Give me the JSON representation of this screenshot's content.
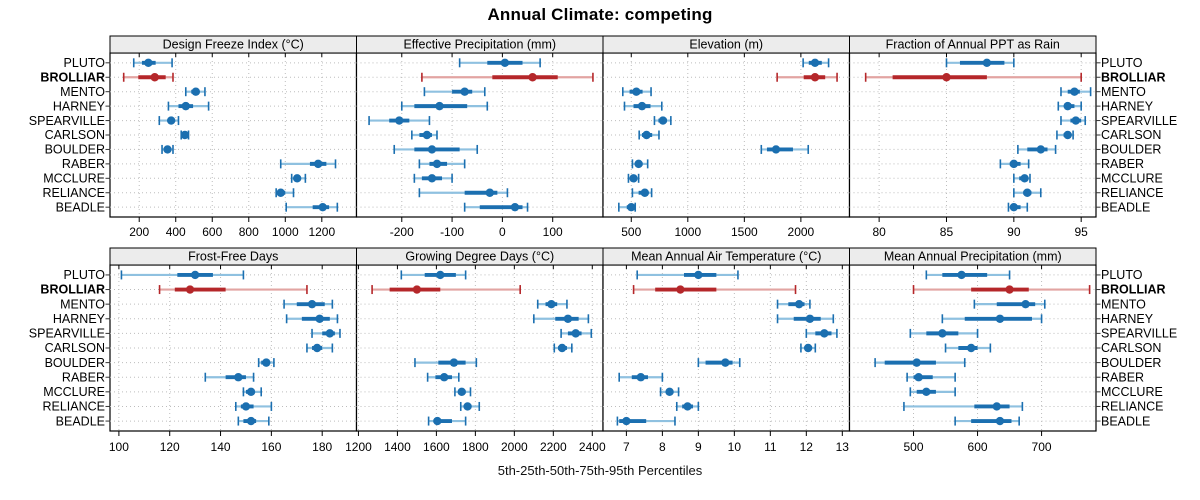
{
  "title": "Annual Climate: competing",
  "caption": "5th-25th-50th-75th-95th Percentiles",
  "colors": {
    "normal": "#1b6fb0",
    "normal_light": "#8fc1e0",
    "highlight": "#b5272a",
    "highlight_light": "#e2a4a2",
    "strip_bg": "#ececec",
    "panel_border": "#000000",
    "grid": "#bdbdbd",
    "text": "#000000"
  },
  "chart_data": {
    "type": "scatter",
    "variant": "trellis percentile dot-range plot (whisker = 5th-95th, thick bar = 25th-75th, dot = median)",
    "title": "Annual Climate: competing",
    "caption": "5th-25th-50th-75th-95th Percentiles",
    "grid": "dotted",
    "legend_position": "none",
    "percentile_levels": [
      5,
      25,
      50,
      75,
      95
    ],
    "stations": [
      "PLUTO",
      "BROLLIAR",
      "MENTO",
      "HARNEY",
      "SPEARVILLE",
      "CARLSON",
      "BOULDER",
      "RABER",
      "MCCLURE",
      "RELIANCE",
      "BEADLE"
    ],
    "highlight_station": "BROLLIAR",
    "panels": [
      {
        "title": "Design Freeze Index (°C)",
        "xlim": [
          40,
          1390
        ],
        "ticks": [
          200,
          400,
          600,
          800,
          1000,
          1200
        ],
        "values": {
          "PLUTO": [
            170,
            215,
            250,
            290,
            380
          ],
          "BROLLIAR": [
            115,
            195,
            285,
            345,
            385
          ],
          "MENTO": [
            455,
            485,
            510,
            530,
            560
          ],
          "HARNEY": [
            360,
            415,
            455,
            495,
            580
          ],
          "SPEARVILLE": [
            310,
            355,
            375,
            395,
            415
          ],
          "CARLSON": [
            430,
            440,
            450,
            460,
            470
          ],
          "BOULDER": [
            325,
            340,
            355,
            370,
            385
          ],
          "RABER": [
            975,
            1135,
            1180,
            1225,
            1275
          ],
          "MCCLURE": [
            1035,
            1050,
            1065,
            1085,
            1110
          ],
          "RELIANCE": [
            950,
            960,
            975,
            1000,
            1045
          ],
          "BEADLE": [
            1005,
            1150,
            1205,
            1240,
            1285
          ]
        }
      },
      {
        "title": "Effective Precipitation (mm)",
        "xlim": [
          -290,
          200
        ],
        "ticks": [
          -200,
          -100,
          0,
          100
        ],
        "values": {
          "PLUTO": [
            -85,
            -30,
            5,
            40,
            75
          ],
          "BROLLIAR": [
            -160,
            -20,
            60,
            110,
            180
          ],
          "MENTO": [
            -155,
            -100,
            -75,
            -60,
            -35
          ],
          "HARNEY": [
            -200,
            -175,
            -125,
            -70,
            -30
          ],
          "SPEARVILLE": [
            -265,
            -225,
            -205,
            -185,
            -145
          ],
          "CARLSON": [
            -180,
            -165,
            -150,
            -140,
            -130
          ],
          "BOULDER": [
            -215,
            -175,
            -140,
            -85,
            -50
          ],
          "RABER": [
            -165,
            -145,
            -130,
            -110,
            -75
          ],
          "MCCLURE": [
            -175,
            -160,
            -140,
            -120,
            -100
          ],
          "RELIANCE": [
            -165,
            -75,
            -25,
            -10,
            10
          ],
          "BEADLE": [
            -75,
            -45,
            25,
            40,
            50
          ]
        }
      },
      {
        "title": "Elevation (m)",
        "xlim": [
          250,
          2430
        ],
        "ticks": [
          500,
          1000,
          1500,
          2000
        ],
        "values": {
          "PLUTO": [
            2020,
            2070,
            2125,
            2185,
            2245
          ],
          "BROLLIAR": [
            1790,
            2025,
            2125,
            2215,
            2320
          ],
          "MENTO": [
            425,
            485,
            545,
            600,
            675
          ],
          "HARNEY": [
            440,
            520,
            595,
            670,
            770
          ],
          "SPEARVILLE": [
            705,
            740,
            780,
            815,
            850
          ],
          "CARLSON": [
            570,
            595,
            635,
            685,
            745
          ],
          "BOULDER": [
            1650,
            1700,
            1780,
            1930,
            2065
          ],
          "RABER": [
            510,
            535,
            565,
            600,
            645
          ],
          "MCCLURE": [
            475,
            500,
            520,
            540,
            565
          ],
          "RELIANCE": [
            510,
            565,
            620,
            645,
            680
          ],
          "BEADLE": [
            390,
            460,
            500,
            520,
            535
          ]
        }
      },
      {
        "title": "Fraction of Annual PPT as Rain",
        "xlim": [
          77.8,
          96.1
        ],
        "ticks": [
          80,
          85,
          90,
          95
        ],
        "values": {
          "PLUTO": [
            85,
            86,
            88,
            89.3,
            90
          ],
          "BROLLIAR": [
            79,
            81,
            85,
            88,
            95
          ],
          "MENTO": [
            93.5,
            94,
            94.5,
            94.9,
            95.7
          ],
          "HARNEY": [
            93.3,
            93.8,
            94,
            94.5,
            95
          ],
          "SPEARVILLE": [
            93.5,
            94.2,
            94.6,
            95,
            95.3
          ],
          "CARLSON": [
            93.2,
            93.7,
            94,
            94.2,
            94.4
          ],
          "BOULDER": [
            90.3,
            91,
            92,
            92.5,
            93.1
          ],
          "RABER": [
            89,
            89.7,
            90,
            90.5,
            91.1
          ],
          "MCCLURE": [
            90,
            90.4,
            90.8,
            91,
            91.2
          ],
          "RELIANCE": [
            90,
            90.7,
            91,
            91.3,
            92
          ],
          "BEADLE": [
            89.6,
            89.9,
            90,
            90.5,
            91
          ]
        }
      },
      {
        "title": "Frost-Free Days",
        "xlim": [
          96.5,
          193.5
        ],
        "ticks": [
          100,
          120,
          140,
          160,
          180
        ],
        "values": {
          "PLUTO": [
            101,
            123,
            130,
            137,
            149
          ],
          "BROLLIAR": [
            116,
            122,
            128,
            142,
            174
          ],
          "MENTO": [
            165,
            170,
            176,
            181,
            184
          ],
          "HARNEY": [
            166,
            172,
            179,
            183,
            186
          ],
          "SPEARVILLE": [
            176,
            180,
            183,
            185,
            187
          ],
          "CARLSON": [
            174,
            176,
            178,
            180,
            184
          ],
          "BOULDER": [
            155,
            156,
            158,
            159,
            161
          ],
          "RABER": [
            134,
            142,
            147,
            150,
            153
          ],
          "MCCLURE": [
            149,
            150,
            152,
            153,
            156
          ],
          "RELIANCE": [
            146,
            148,
            150,
            153,
            160
          ],
          "BEADLE": [
            147,
            149,
            152,
            154,
            159
          ]
        }
      },
      {
        "title": "Growing Degree Days (°C)",
        "xlim": [
          1190,
          2455
        ],
        "ticks": [
          1200,
          1400,
          1600,
          1800,
          2000,
          2200,
          2400
        ],
        "values": {
          "PLUTO": [
            1420,
            1540,
            1620,
            1700,
            1750
          ],
          "BROLLIAR": [
            1270,
            1360,
            1500,
            1620,
            2030
          ],
          "MENTO": [
            2120,
            2160,
            2190,
            2220,
            2270
          ],
          "HARNEY": [
            2100,
            2210,
            2275,
            2330,
            2380
          ],
          "SPEARVILLE": [
            2240,
            2275,
            2315,
            2345,
            2395
          ],
          "CARLSON": [
            2205,
            2225,
            2245,
            2270,
            2295
          ],
          "BOULDER": [
            1490,
            1610,
            1690,
            1750,
            1805
          ],
          "RABER": [
            1555,
            1595,
            1640,
            1680,
            1715
          ],
          "MCCLURE": [
            1695,
            1715,
            1730,
            1750,
            1775
          ],
          "RELIANCE": [
            1725,
            1745,
            1760,
            1780,
            1820
          ],
          "BEADLE": [
            1560,
            1585,
            1605,
            1680,
            1750
          ]
        }
      },
      {
        "title": "Mean Annual Air Temperature (°C)",
        "xlim": [
          6.35,
          13.2
        ],
        "ticks": [
          7,
          8,
          9,
          10,
          11,
          12,
          13
        ],
        "values": {
          "PLUTO": [
            7.3,
            8.6,
            9.0,
            9.5,
            10.1
          ],
          "BROLLIAR": [
            7.2,
            7.8,
            8.5,
            9.5,
            11.7
          ],
          "MENTO": [
            11.2,
            11.5,
            11.8,
            11.95,
            12.1
          ],
          "HARNEY": [
            11.2,
            11.65,
            12.1,
            12.4,
            12.75
          ],
          "SPEARVILLE": [
            12.0,
            12.25,
            12.5,
            12.7,
            12.85
          ],
          "CARLSON": [
            11.85,
            11.95,
            12.05,
            12.15,
            12.25
          ],
          "BOULDER": [
            9.0,
            9.2,
            9.75,
            9.95,
            10.15
          ],
          "RABER": [
            6.8,
            7.15,
            7.4,
            7.6,
            8.0
          ],
          "MCCLURE": [
            7.95,
            8.1,
            8.2,
            8.3,
            8.45
          ],
          "RELIANCE": [
            8.4,
            8.55,
            8.7,
            8.85,
            9.0
          ],
          "BEADLE": [
            6.75,
            6.8,
            7.0,
            7.55,
            8.35
          ]
        }
      },
      {
        "title": "Mean Annual Precipitation (mm)",
        "xlim": [
          400,
          785
        ],
        "ticks": [
          500,
          600,
          700
        ],
        "values": {
          "PLUTO": [
            520,
            545,
            575,
            615,
            650
          ],
          "BROLLIAR": [
            500,
            590,
            650,
            680,
            775
          ],
          "MENTO": [
            595,
            630,
            675,
            690,
            705
          ],
          "HARNEY": [
            545,
            580,
            635,
            685,
            700
          ],
          "SPEARVILLE": [
            495,
            520,
            545,
            570,
            600
          ],
          "CARLSON": [
            550,
            570,
            590,
            600,
            620
          ],
          "BOULDER": [
            440,
            455,
            505,
            535,
            580
          ],
          "RABER": [
            490,
            500,
            508,
            530,
            565
          ],
          "MCCLURE": [
            495,
            505,
            520,
            535,
            565
          ],
          "RELIANCE": [
            485,
            595,
            630,
            650,
            670
          ],
          "BEADLE": [
            565,
            590,
            635,
            653,
            665
          ]
        }
      }
    ]
  }
}
